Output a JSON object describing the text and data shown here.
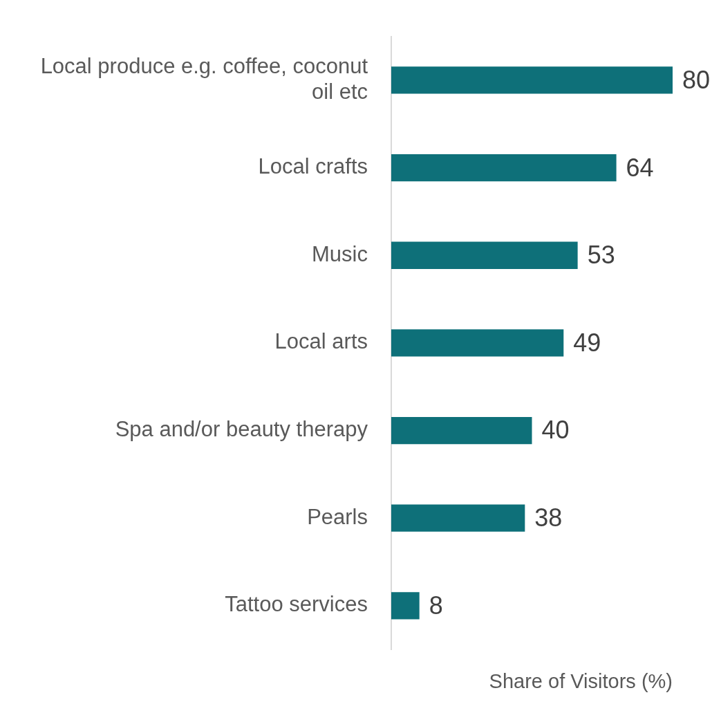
{
  "chart_data": {
    "type": "bar",
    "orientation": "horizontal",
    "xlabel": "Share of Visitors (%)",
    "categories": [
      "Local produce e.g. coffee, coconut oil etc",
      "Local crafts",
      "Music",
      "Local arts",
      "Spa and/or beauty therapy",
      "Pearls",
      "Tattoo services"
    ],
    "values": [
      80,
      64,
      53,
      49,
      40,
      38,
      8
    ],
    "color": "#0e7079",
    "data_labels": true,
    "tick_labels": "y",
    "grid": false,
    "legend": false
  }
}
